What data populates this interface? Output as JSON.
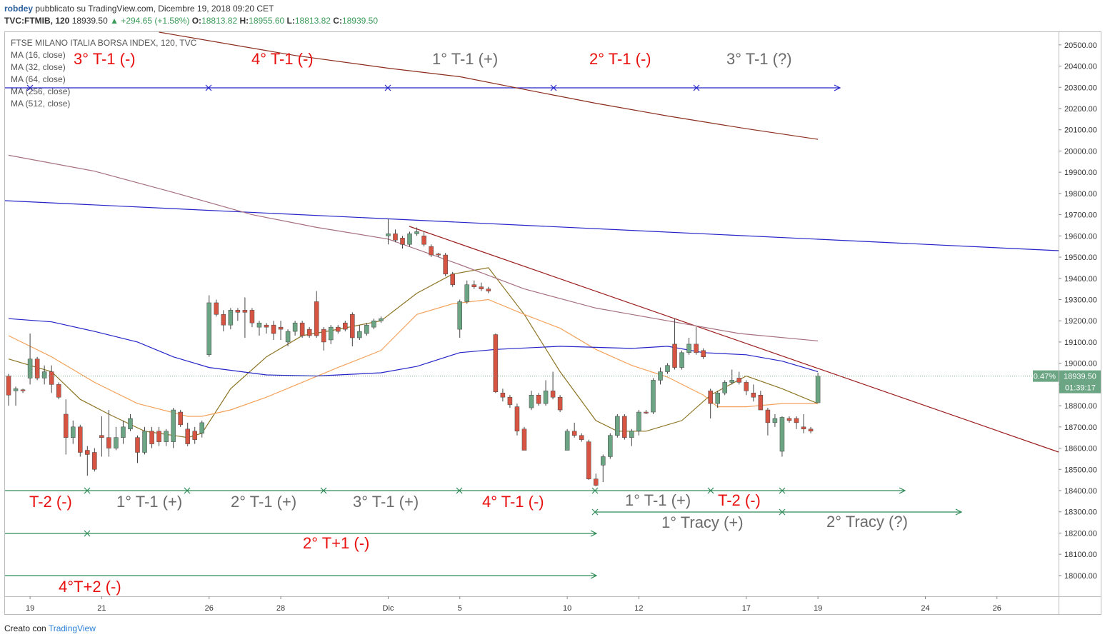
{
  "header": {
    "author": "robdey",
    "published": "pubblicato su TradingView.com, Dicembre 19, 2018 09:20 CET",
    "symbol": "TVC:FTMIB, 120",
    "price": "18939.50",
    "change": "▲ +294.65 (+1.58%)",
    "ohlc": [
      {
        "label": "O:",
        "value": "18813.82"
      },
      {
        "label": "H:",
        "value": "18955.60"
      },
      {
        "label": "L:",
        "value": "18813.82"
      },
      {
        "label": "C:",
        "value": "18939.50"
      }
    ]
  },
  "footer": {
    "created": "Creato con",
    "brand": "TradingView"
  },
  "chart_data": {
    "type": "candlestick",
    "title": "FTSE MILANO ITALIA BORSA INDEX, 120, TVC",
    "up_color": "#6ba583",
    "down_color": "#d75442",
    "wick_color": "#444444",
    "open": [
      18940,
      18870,
      18875,
      18930,
      19020,
      18930,
      18960,
      18900,
      18760,
      18650,
      18700,
      18590,
      18580,
      18660,
      18650,
      18600,
      18650,
      18690,
      18650,
      18580,
      18680,
      18680,
      18630,
      18630,
      18770,
      18690,
      18680,
      18670,
      19040,
      19285,
      19230,
      19180,
      19250,
      19250,
      19250,
      19170,
      19180,
      19180,
      19170,
      19100,
      19150,
      19190,
      19160,
      19290,
      19160,
      19110,
      19170,
      19190,
      19230,
      19120,
      19140,
      19170,
      19200,
      19600,
      19610,
      19590,
      19560,
      19610,
      19600,
      19550,
      19515,
      19510,
      19420,
      19160,
      19290,
      19370,
      19360,
      19350,
      19135,
      18860,
      18840,
      18795,
      18690,
      18790,
      18850,
      18810,
      18870,
      18840,
      18590,
      18680,
      18660,
      18630,
      18455,
      18520,
      18560,
      18660,
      18750,
      18650,
      18680,
      18770,
      18770,
      18920,
      18960,
      19090,
      18980,
      19050,
      19090,
      19060,
      18870,
      18810,
      18860,
      18910,
      18930,
      18910,
      18860,
      18850,
      18780,
      18720,
      18585,
      18740,
      18740,
      18700,
      18690,
      18813.82
    ],
    "high": [
      18950,
      18890,
      18880,
      19140,
      19030,
      18990,
      18990,
      18910,
      18830,
      18730,
      18710,
      18610,
      18600,
      18750,
      18780,
      18700,
      18730,
      18760,
      18660,
      18700,
      18700,
      18700,
      18690,
      18790,
      18780,
      18720,
      18700,
      18730,
      19320,
      19300,
      19250,
      19260,
      19260,
      19310,
      19260,
      19200,
      19190,
      19200,
      19200,
      19160,
      19200,
      19200,
      19170,
      19340,
      19170,
      19180,
      19180,
      19200,
      19240,
      19180,
      19190,
      19210,
      19220,
      19680,
      19630,
      19600,
      19620,
      19640,
      19620,
      19560,
      19520,
      19520,
      19430,
      19300,
      19390,
      19390,
      19380,
      19360,
      19140,
      18880,
      18850,
      18810,
      18700,
      18870,
      18860,
      18920,
      18960,
      18850,
      18690,
      18720,
      18670,
      18640,
      18480,
      18570,
      18670,
      18760,
      18760,
      18690,
      18780,
      18780,
      18930,
      18980,
      19000,
      19210,
      19060,
      19120,
      19170,
      19070,
      18880,
      18870,
      18920,
      18970,
      18960,
      18920,
      18900,
      18870,
      18790,
      18760,
      18750,
      18750,
      18750,
      18760,
      18700,
      18955.6
    ],
    "low": [
      18800,
      18800,
      18860,
      18900,
      18920,
      18900,
      18860,
      18830,
      18570,
      18620,
      18560,
      18470,
      18490,
      18560,
      18560,
      18590,
      18620,
      18680,
      18530,
      18570,
      18600,
      18610,
      18610,
      18600,
      18700,
      18610,
      18620,
      18650,
      19030,
      19220,
      19150,
      19160,
      19200,
      19120,
      19170,
      19130,
      19140,
      19110,
      19110,
      19080,
      19130,
      19120,
      19120,
      19120,
      19060,
      19090,
      19140,
      19150,
      19080,
      19110,
      19130,
      19160,
      19190,
      19560,
      19570,
      19540,
      19550,
      19600,
      19550,
      19500,
      19500,
      19410,
      19360,
      19120,
      19280,
      19350,
      19340,
      19330,
      18860,
      18820,
      18790,
      18660,
      18590,
      18780,
      18800,
      18800,
      18830,
      18770,
      18590,
      18650,
      18630,
      18450,
      18420,
      18440,
      18550,
      18650,
      18640,
      18610,
      18660,
      18760,
      18760,
      18900,
      18950,
      18970,
      18970,
      19040,
      19040,
      19020,
      18740,
      18790,
      18850,
      18900,
      18900,
      18850,
      18820,
      18780,
      18660,
      18700,
      18560,
      18720,
      18690,
      18670,
      18670,
      18813.82
    ],
    "close": [
      18850,
      18880,
      18870,
      19020,
      18930,
      18960,
      18900,
      18840,
      18650,
      18700,
      18580,
      18570,
      18500,
      18650,
      18600,
      18650,
      18700,
      18740,
      18580,
      18680,
      18620,
      18630,
      18680,
      18780,
      18710,
      18620,
      18640,
      18720,
      19285,
      19230,
      19180,
      19250,
      19240,
      19240,
      19190,
      19190,
      19170,
      19140,
      19160,
      19150,
      19190,
      19130,
      19130,
      19130,
      19100,
      19170,
      19150,
      19160,
      19120,
      19150,
      19180,
      19200,
      19210,
      19610,
      19580,
      19560,
      19610,
      19620,
      19560,
      19510,
      19510,
      19420,
      19370,
      19290,
      19370,
      19360,
      19350,
      19340,
      18865,
      18840,
      18805,
      18680,
      18590,
      18850,
      18810,
      18870,
      18840,
      18780,
      18680,
      18660,
      18640,
      18455,
      18425,
      18560,
      18660,
      18750,
      18650,
      18680,
      18770,
      18765,
      18920,
      18960,
      18990,
      18980,
      19050,
      19090,
      19050,
      19030,
      18810,
      18860,
      18910,
      18920,
      18910,
      18870,
      18840,
      18780,
      18720,
      18740,
      18745,
      18730,
      18720,
      18690,
      18680,
      18939.5
    ],
    "xlim": [
      -0.5,
      146.6
    ],
    "xticks": [
      {
        "value": 3,
        "label": "19"
      },
      {
        "value": 13,
        "label": "21"
      },
      {
        "value": 28,
        "label": "26"
      },
      {
        "value": 38,
        "label": "28"
      },
      {
        "value": 53,
        "label": "Dic"
      },
      {
        "value": 63,
        "label": "5"
      },
      {
        "value": 78,
        "label": "10"
      },
      {
        "value": 88,
        "label": "12"
      },
      {
        "value": 103,
        "label": "17"
      },
      {
        "value": 113,
        "label": "19"
      },
      {
        "value": 128,
        "label": "24"
      },
      {
        "value": 138,
        "label": "26"
      }
    ],
    "ylim": [
      17902,
      20560
    ],
    "yticks": [
      {
        "value": 18000,
        "label": "18000.00"
      },
      {
        "value": 18100,
        "label": "18100.00"
      },
      {
        "value": 18200,
        "label": "18200.00"
      },
      {
        "value": 18300,
        "label": "18300.00"
      },
      {
        "value": 18400,
        "label": "18400.00"
      },
      {
        "value": 18500,
        "label": "18500.00"
      },
      {
        "value": 18600,
        "label": "18600.00"
      },
      {
        "value": 18700,
        "label": "18700.00"
      },
      {
        "value": 18800,
        "label": "18800.00"
      },
      {
        "value": 18900,
        "label": "18900.00"
      },
      {
        "value": 19000,
        "label": "19000.00"
      },
      {
        "value": 19100,
        "label": "19100.00"
      },
      {
        "value": 19200,
        "label": "19200.00"
      },
      {
        "value": 19300,
        "label": "19300.00"
      },
      {
        "value": 19400,
        "label": "19400.00"
      },
      {
        "value": 19500,
        "label": "19500.00"
      },
      {
        "value": 19600,
        "label": "19600.00"
      },
      {
        "value": 19700,
        "label": "19700.00"
      },
      {
        "value": 19800,
        "label": "19800.00"
      },
      {
        "value": 19900,
        "label": "19900.00"
      },
      {
        "value": 20000,
        "label": "20000.00"
      },
      {
        "value": 20100,
        "label": "20100.00"
      },
      {
        "value": 20200,
        "label": "20200.00"
      },
      {
        "value": 20300,
        "label": "20300.00"
      },
      {
        "value": 20400,
        "label": "20400.00"
      },
      {
        "value": 20500,
        "label": "20500.00"
      }
    ],
    "series": [
      {
        "name": "MA (16, close)",
        "color": "#8d7424",
        "x": [
          0,
          6,
          10,
          14,
          19,
          25,
          27,
          31,
          36,
          41,
          46,
          52,
          57,
          62,
          67,
          72,
          77,
          82,
          85,
          89,
          94,
          98,
          103,
          108,
          113
        ],
        "values": [
          19020,
          18960,
          18830,
          18760,
          18680,
          18650,
          18670,
          18880,
          19030,
          19130,
          19160,
          19200,
          19330,
          19420,
          19450,
          19230,
          18960,
          18730,
          18680,
          18680,
          18730,
          18850,
          18940,
          18880,
          18810
        ]
      },
      {
        "name": "MA (32, close)",
        "color": "#f3a25b",
        "x": [
          0,
          6,
          12,
          18,
          25,
          27,
          31,
          36,
          41,
          46,
          52,
          57,
          62,
          67,
          72,
          77,
          82,
          87,
          92,
          97,
          99,
          103,
          108,
          113
        ],
        "values": [
          19130,
          19030,
          18910,
          18810,
          18750,
          18750,
          18780,
          18840,
          18910,
          18980,
          19060,
          19230,
          19280,
          19300,
          19230,
          19165,
          19065,
          18990,
          18935,
          18850,
          18795,
          18795,
          18810,
          18810
        ]
      },
      {
        "name": "MA (64, close)",
        "color": "#2424c8",
        "x": [
          0,
          6,
          12,
          18,
          23,
          28,
          36,
          43,
          52,
          57,
          63,
          68,
          77,
          87,
          92,
          97,
          103,
          108,
          113
        ],
        "values": [
          19210,
          19195,
          19150,
          19100,
          19030,
          18980,
          18945,
          18940,
          18955,
          18985,
          19050,
          19065,
          19080,
          19070,
          19080,
          19050,
          19040,
          19010,
          18960
        ]
      },
      {
        "name": "MA (256, close)",
        "color": "#a6707e",
        "x": [
          0,
          12,
          23,
          34,
          43,
          53,
          63,
          72,
          82,
          92,
          102,
          113
        ],
        "values": [
          19980,
          19905,
          19805,
          19700,
          19640,
          19585,
          19465,
          19350,
          19260,
          19200,
          19140,
          19105
        ]
      },
      {
        "name": "MA (512, close)",
        "color": "#8b2c1c",
        "x": [
          21,
          40,
          53,
          63,
          72,
          82,
          92,
          103,
          113
        ],
        "values": [
          20560,
          20450,
          20390,
          20350,
          20290,
          20225,
          20165,
          20105,
          20055
        ]
      }
    ],
    "price_tag": {
      "change": "0.47%",
      "price": "18939.50",
      "countdown": "01:39:17"
    },
    "annotations": [
      "3° T-1 (-)",
      "4° T-1 (-)",
      "1° T-1 (+)",
      "2° T-1 (-)",
      "3° T-1 (?)",
      "T-2 (-)",
      "1° T-1 (+)",
      "2° T-1 (+)",
      "3° T-1 (+)",
      "4° T-1 (-)",
      "1° T-1 (+)",
      "T-2 (-)",
      "1° Tracy (+)",
      "2° Tracy (?)",
      "2° T+1 (-)",
      "4°T+2 (-)"
    ]
  }
}
